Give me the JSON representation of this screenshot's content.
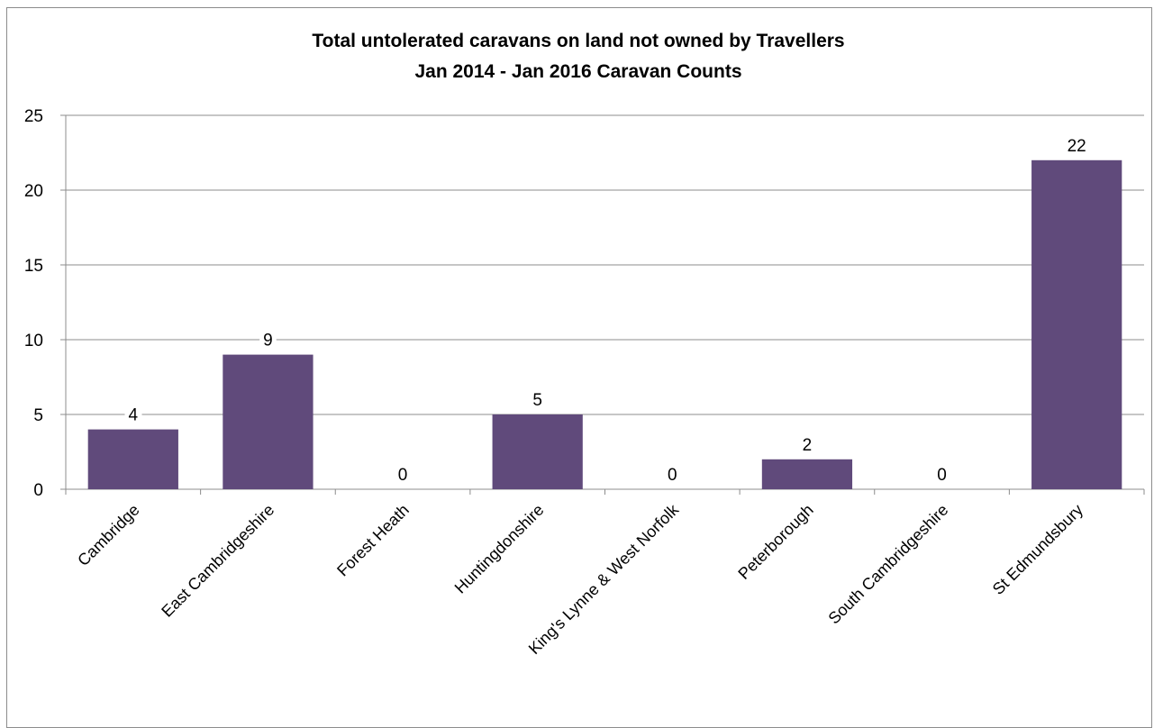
{
  "chart_data": {
    "type": "bar",
    "title": "Total untolerated caravans on land not owned by Travellers",
    "subtitle": "Jan 2014 - Jan 2016 Caravan Counts",
    "categories": [
      "Cambridge",
      "East Cambridgeshire",
      "Forest Heath",
      "Huntingdonshire",
      "King's Lynne & West Norfolk",
      "Peterborough",
      "South Cambridgeshire",
      "St Edmundsbury"
    ],
    "values": [
      4,
      9,
      0,
      5,
      0,
      2,
      0,
      22
    ],
    "data_labels": [
      "4",
      "9",
      "0",
      "5",
      "0",
      "2",
      "0",
      "22"
    ],
    "yticks": [
      0,
      5,
      10,
      15,
      20,
      25
    ],
    "ylim": [
      0,
      25
    ],
    "xlabel": "",
    "ylabel": "",
    "grid": true,
    "legend": "none",
    "bar_color": "#604a7b",
    "gridline_color": "#8c8c8c"
  }
}
